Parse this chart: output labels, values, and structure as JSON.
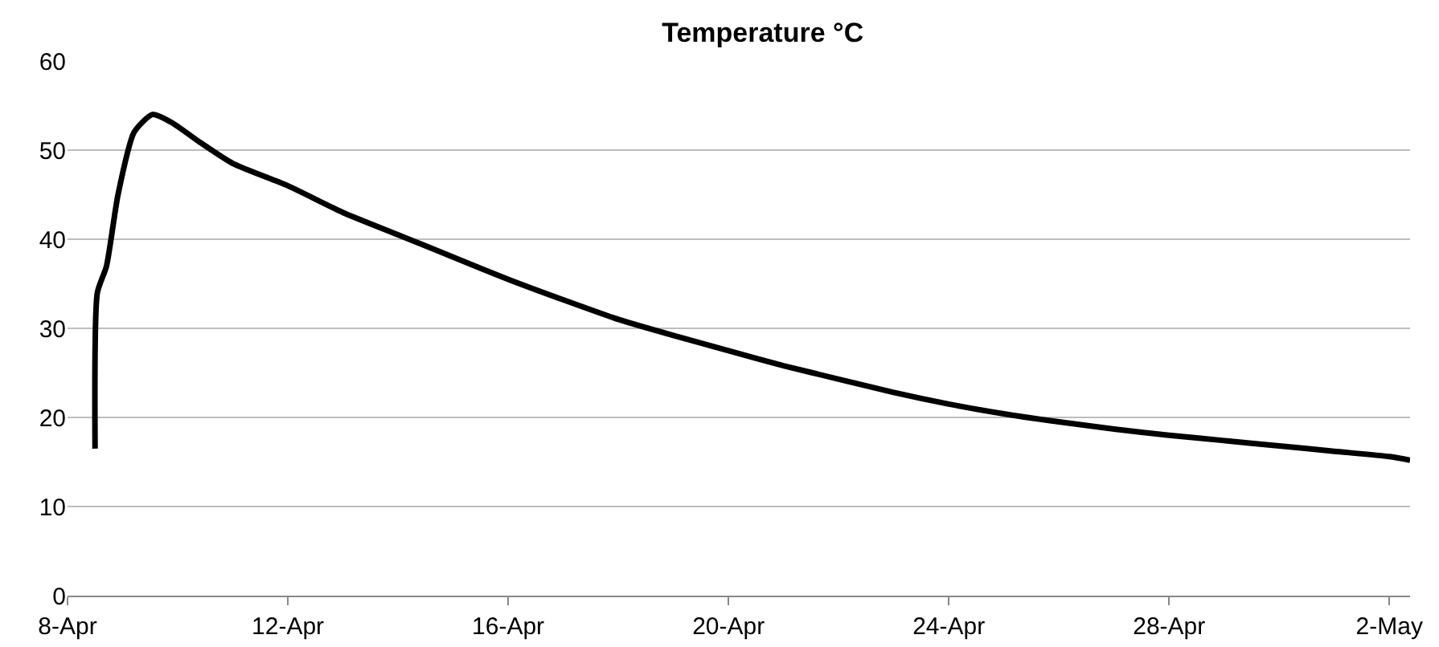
{
  "chart_data": {
    "type": "line",
    "title": "Temperature °C",
    "x": [
      "--04-08T12:00",
      "--04-08T13:00",
      "--04-08T17:00",
      "--04-08T22:00",
      "--04-09T05:00",
      "--04-09T13:00",
      "--04-09T22:00",
      "--04-10T09:00",
      "--04-11T00:00",
      "--04-12T00:00",
      "--04-13T00:00",
      "--04-14T00:00",
      "--04-15T00:00",
      "--04-16T00:00",
      "--04-17T00:00",
      "--04-18T00:00",
      "--04-19T00:00",
      "--04-20T00:00",
      "--04-21T00:00",
      "--04-22T00:00",
      "--04-23T00:00",
      "--04-24T00:00",
      "--04-25T00:00",
      "--04-26T00:00",
      "--04-27T00:00",
      "--04-28T00:00",
      "--04-29T00:00",
      "--04-30T00:00",
      "--05-01T00:00",
      "--05-02T00:00",
      "--05-02T09:00"
    ],
    "series": [
      {
        "color": "#000000",
        "values": [
          16.5,
          34,
          37,
          45,
          52,
          54,
          53,
          51,
          48.5,
          46,
          43,
          40.5,
          38,
          35.5,
          33.2,
          31,
          29.2,
          27.5,
          25.8,
          24.3,
          22.8,
          21.5,
          20.4,
          19.5,
          18.7,
          18,
          17.4,
          16.8,
          16.2,
          15.6,
          15.2
        ]
      }
    ],
    "xlim": [
      "--04-08",
      "--05-02T09:00"
    ],
    "xticks": [
      {
        "value": "--04-08",
        "label": "8-Apr"
      },
      {
        "value": "--04-12",
        "label": "12-Apr"
      },
      {
        "value": "--04-16",
        "label": "16-Apr"
      },
      {
        "value": "--04-20",
        "label": "20-Apr"
      },
      {
        "value": "--04-24",
        "label": "24-Apr"
      },
      {
        "value": "--04-28",
        "label": "28-Apr"
      },
      {
        "value": "--05-02",
        "label": "2-May"
      }
    ],
    "ylim": [
      0,
      60
    ],
    "yticks": [
      0,
      10,
      20,
      30,
      40,
      50,
      60
    ],
    "grid": "y",
    "marker": "none",
    "line_style": "solid"
  }
}
